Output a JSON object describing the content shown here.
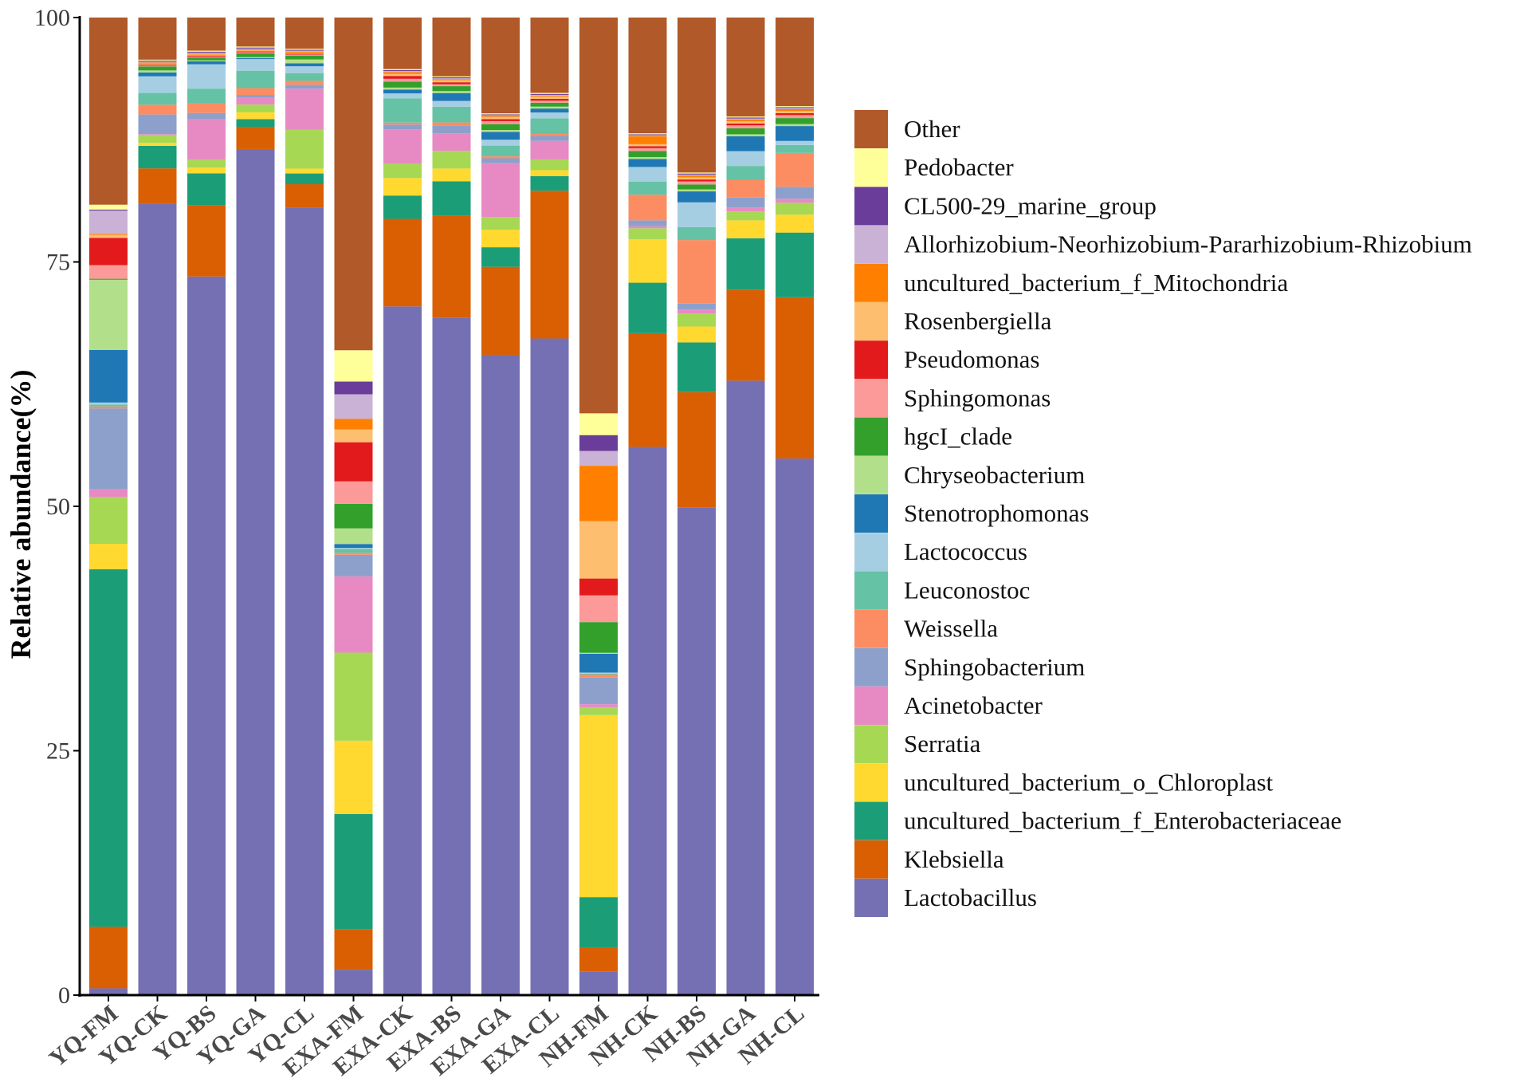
{
  "chart_data": {
    "type": "bar",
    "stacked": true,
    "title": "",
    "xlabel": "",
    "ylabel": "Relative abundance(%)",
    "ylim": [
      0,
      100
    ],
    "yticks": [
      0,
      25,
      50,
      75,
      100
    ],
    "ytick_labels": [
      "0",
      "25",
      "50",
      "75",
      "100"
    ],
    "grid": false,
    "legend_position": "right",
    "categories": [
      "YQ-FM",
      "YQ-CK",
      "YQ-BS",
      "YQ-GA",
      "YQ-CL",
      "EXA-FM",
      "EXA-CK",
      "EXA-BS",
      "EXA-GA",
      "EXA-CL",
      "NH-FM",
      "NH-CK",
      "NH-BS",
      "NH-GA",
      "NH-CL"
    ],
    "series": [
      {
        "name": "Lactobacillus",
        "color": "#7570B3",
        "values": [
          0.7,
          80.8,
          73.8,
          87.5,
          80.8,
          2.6,
          70.8,
          69.1,
          65.5,
          67.1,
          2.4,
          55.4,
          49.1,
          62.1,
          53.9
        ]
      },
      {
        "name": "Klebsiella",
        "color": "#D95F02",
        "values": [
          6.3,
          3.6,
          7.3,
          2.3,
          2.4,
          4.1,
          9.0,
          10.4,
          9.0,
          15.1,
          2.4,
          11.5,
          11.6,
          9.2,
          16.2
        ]
      },
      {
        "name": "uncultured_bacterium_f_Enterobacteriaceae",
        "color": "#1B9E77",
        "values": [
          36.7,
          2.3,
          3.3,
          0.8,
          1.1,
          11.8,
          2.4,
          3.5,
          2.0,
          1.5,
          5.1,
          5.1,
          5.0,
          5.2,
          6.5
        ]
      },
      {
        "name": "uncultured_bacterium_o_Chloroplast",
        "color": "#FFD92F",
        "values": [
          2.6,
          0.3,
          0.6,
          0.7,
          0.5,
          7.5,
          1.8,
          1.3,
          1.8,
          0.6,
          18.4,
          4.4,
          1.6,
          1.8,
          1.8
        ]
      },
      {
        "name": "Serratia",
        "color": "#A6D854",
        "values": [
          4.8,
          0.8,
          0.8,
          0.8,
          4.0,
          9.0,
          1.5,
          1.8,
          1.3,
          1.1,
          0.8,
          1.1,
          1.3,
          0.9,
          1.2
        ]
      },
      {
        "name": "Acinetobacter",
        "color": "#E78AC3",
        "values": [
          0.8,
          0.1,
          4.2,
          0.7,
          4.2,
          7.8,
          3.5,
          1.8,
          5.5,
          1.9,
          0.3,
          0.2,
          0.4,
          0.4,
          0.4
        ]
      },
      {
        "name": "Sphingobacterium",
        "color": "#8DA0CB",
        "values": [
          8.3,
          2.0,
          0.6,
          0.3,
          0.4,
          2.2,
          0.5,
          0.8,
          0.5,
          0.5,
          2.7,
          0.6,
          0.6,
          1.0,
          1.2
        ]
      },
      {
        "name": "Weissella",
        "color": "#FC8D62",
        "values": [
          0.2,
          1.0,
          1.0,
          0.7,
          0.4,
          0.2,
          0.2,
          0.3,
          0.2,
          0.2,
          0.3,
          2.6,
          6.4,
          1.8,
          3.4
        ]
      },
      {
        "name": "Leuconostoc",
        "color": "#66C2A5",
        "values": [
          0.2,
          1.2,
          1.5,
          1.8,
          0.8,
          0.4,
          2.5,
          1.6,
          1.1,
          1.6,
          0.1,
          1.3,
          1.3,
          1.4,
          0.8
        ]
      },
      {
        "name": "Lactococcus",
        "color": "#A6CEE3",
        "values": [
          0.2,
          1.7,
          2.5,
          1.2,
          0.7,
          0.1,
          0.5,
          0.6,
          0.6,
          0.6,
          0.1,
          1.5,
          2.5,
          1.5,
          0.4
        ]
      },
      {
        "name": "Stenotrophomonas",
        "color": "#1F78B4",
        "values": [
          5.4,
          0.4,
          0.3,
          0.1,
          0.3,
          0.4,
          0.4,
          0.8,
          0.8,
          0.4,
          1.9,
          0.8,
          1.1,
          1.5,
          1.5
        ]
      },
      {
        "name": "Chryseobacterium",
        "color": "#B2DF8A",
        "values": [
          7.2,
          0.2,
          0.1,
          0.1,
          0.4,
          1.6,
          0.2,
          0.2,
          0.2,
          0.2,
          0.1,
          0.2,
          0.2,
          0.2,
          0.2
        ]
      },
      {
        "name": "hgcI_clade",
        "color": "#33A02C",
        "values": [
          0.1,
          0.4,
          0.3,
          0.4,
          0.4,
          2.5,
          0.6,
          0.5,
          0.6,
          0.4,
          3.1,
          0.6,
          0.5,
          0.6,
          0.6
        ]
      },
      {
        "name": "Sphingomonas",
        "color": "#FB9A99",
        "values": [
          1.4,
          0.1,
          0.1,
          0.1,
          0.1,
          2.3,
          0.3,
          0.2,
          0.3,
          0.2,
          2.7,
          0.3,
          0.3,
          0.3,
          0.3
        ]
      },
      {
        "name": "Pseudomonas",
        "color": "#E31A1C",
        "values": [
          2.8,
          0.1,
          0.1,
          0.1,
          0.1,
          4.0,
          0.3,
          0.2,
          0.2,
          0.2,
          1.7,
          0.2,
          0.2,
          0.2,
          0.2
        ]
      },
      {
        "name": "Rosenbergiella",
        "color": "#FDBF6F",
        "values": [
          0.3,
          0.1,
          0.1,
          0.1,
          0.1,
          1.3,
          0.2,
          0.2,
          0.2,
          0.2,
          5.8,
          0.2,
          0.2,
          0.2,
          0.2
        ]
      },
      {
        "name": "uncultured_bacterium_f_Mitochondria",
        "color": "#FF7F00",
        "values": [
          0.1,
          0.1,
          0.1,
          0.1,
          0.1,
          1.1,
          0.2,
          0.1,
          0.1,
          0.1,
          5.6,
          0.8,
          0.2,
          0.2,
          0.2
        ]
      },
      {
        "name": "Allorhizobium-Neorhizobium-Pararhizobium-Rhizobium",
        "color": "#CAB2D6",
        "values": [
          2.4,
          0.1,
          0.1,
          0.1,
          0.1,
          2.5,
          0.1,
          0.1,
          0.1,
          0.1,
          1.5,
          0.1,
          0.1,
          0.1,
          0.1
        ]
      },
      {
        "name": "CL500-29_marine_group",
        "color": "#6A3D9A",
        "values": [
          0.1,
          0.1,
          0.1,
          0.1,
          0.1,
          1.3,
          0.1,
          0.1,
          0.1,
          0.1,
          1.6,
          0.1,
          0.1,
          0.1,
          0.1
        ]
      },
      {
        "name": "Pedobacter",
        "color": "#FFFF99",
        "values": [
          0.5,
          0.1,
          0.1,
          0.1,
          0.1,
          3.2,
          0.1,
          0.1,
          0.1,
          0.1,
          2.2,
          0.1,
          0.1,
          0.1,
          0.1
        ]
      },
      {
        "name": "Other",
        "color": "#B15928",
        "values": [
          19.2,
          4.3,
          3.4,
          3.0,
          3.2,
          34.0,
          5.3,
          6.0,
          9.8,
          7.7,
          40.0,
          11.7,
          15.6,
          10.0,
          8.9
        ]
      }
    ]
  }
}
